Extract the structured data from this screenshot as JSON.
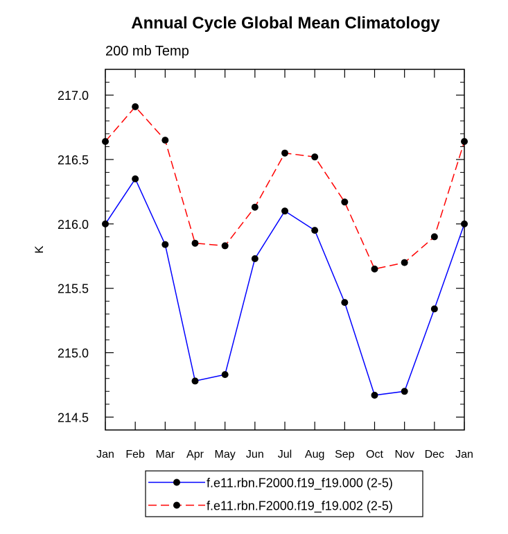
{
  "chart_data": {
    "type": "line",
    "title": "Annual Cycle Global Mean Climatology",
    "subtitle": "200 mb Temp",
    "xlabel": "",
    "ylabel": "K",
    "categories": [
      "Jan",
      "Feb",
      "Mar",
      "Apr",
      "May",
      "Jun",
      "Jul",
      "Aug",
      "Sep",
      "Oct",
      "Nov",
      "Dec",
      "Jan"
    ],
    "ylim": [
      214.4,
      217.2
    ],
    "yticks": [
      214.5,
      215.0,
      215.5,
      216.0,
      216.5,
      217.0
    ],
    "ytick_labels": [
      "214.5",
      "215.0",
      "215.5",
      "216.0",
      "216.5",
      "217.0"
    ],
    "grid": false,
    "legend_position": "bottom-center",
    "series": [
      {
        "name": "f.e11.rbn.F2000.f19_f19.000 (2-5)",
        "color": "#0000ff",
        "dash": "solid",
        "values": [
          216.0,
          216.35,
          215.84,
          214.78,
          214.83,
          215.73,
          216.1,
          215.95,
          215.39,
          214.67,
          214.7,
          215.34,
          216.0
        ]
      },
      {
        "name": "f.e11.rbn.F2000.f19_f19.002 (2-5)",
        "color": "#ff0000",
        "dash": "dashed",
        "values": [
          216.64,
          216.91,
          216.65,
          215.85,
          215.83,
          216.13,
          216.55,
          216.52,
          216.17,
          215.65,
          215.7,
          215.9,
          216.64
        ]
      }
    ]
  }
}
